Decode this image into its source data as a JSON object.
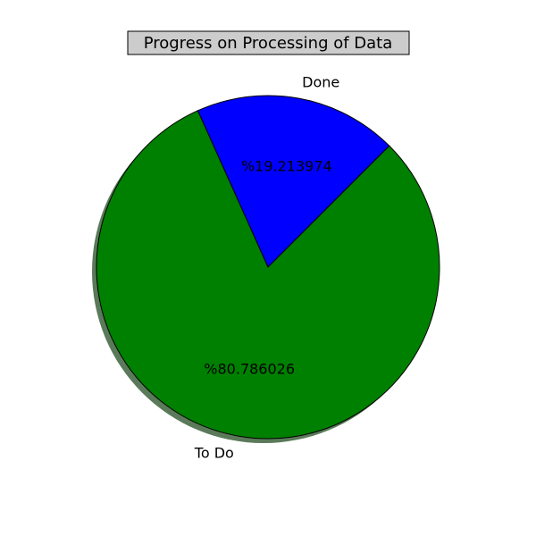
{
  "chart_data": {
    "type": "pie",
    "title": "Progress on Processing of Data",
    "slices": [
      {
        "label": "Done",
        "value": 19.213974,
        "pct_label": "%19.213974",
        "color": "#0000ff"
      },
      {
        "label": "To Do",
        "value": 80.786026,
        "pct_label": "%80.786026",
        "color": "#008000"
      }
    ],
    "start_angle_deg": 45,
    "shadow": true,
    "shadow_color": "#5a7a5a"
  }
}
